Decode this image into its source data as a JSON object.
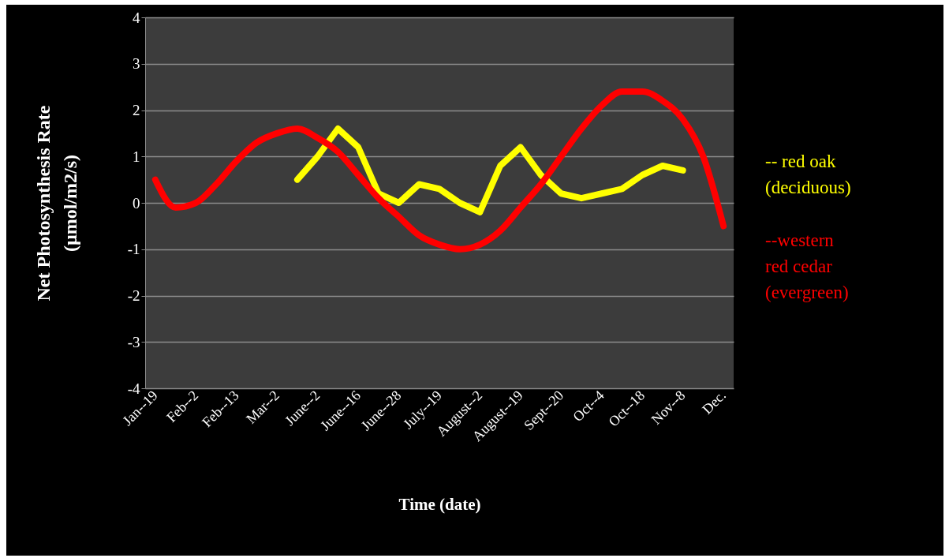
{
  "chart_data": {
    "type": "line",
    "xlabel": "Time (date)",
    "ylabel": "Net  Photosynthesis Rate (µmol/m2/s)",
    "categories": [
      "Jan--19",
      null,
      "Feb--2",
      null,
      "Feb--13",
      null,
      "Mar--2",
      null,
      "June--2",
      null,
      "June--16",
      null,
      "June--28",
      null,
      "July--19",
      null,
      "August--2",
      null,
      "August--19",
      null,
      "Sept--20",
      null,
      "Oct--4",
      null,
      "Oct--18",
      null,
      "Nov--8",
      null,
      "Dec."
    ],
    "series": [
      {
        "name": "-- red oak (deciduous)",
        "color": "#ffff00",
        "values": [
          null,
          null,
          null,
          null,
          null,
          null,
          null,
          0.5,
          1.0,
          1.6,
          1.2,
          0.2,
          0.0,
          0.4,
          0.3,
          0.0,
          -0.2,
          0.8,
          1.2,
          0.6,
          0.2,
          0.1,
          0.2,
          0.3,
          0.6,
          0.8,
          0.7,
          null,
          null
        ]
      },
      {
        "name": "--western red cedar (evergreen)",
        "color": "#ff0000",
        "values": [
          0.5,
          -0.1,
          0.0,
          0.4,
          0.9,
          1.3,
          1.5,
          1.6,
          1.4,
          1.1,
          0.6,
          0.1,
          -0.3,
          -0.7,
          -0.9,
          -1.0,
          -0.9,
          -0.6,
          -0.1,
          0.4,
          1.0,
          1.6,
          2.1,
          2.4,
          2.4,
          2.2,
          1.8,
          1.0,
          -0.5
        ]
      }
    ],
    "ylim": [
      -4,
      4
    ],
    "yticks": [
      -4,
      -3,
      -2,
      -1,
      0,
      1,
      2,
      3,
      4
    ],
    "grid": "y",
    "legend": "right",
    "marker": "none",
    "line_style": "solid"
  }
}
